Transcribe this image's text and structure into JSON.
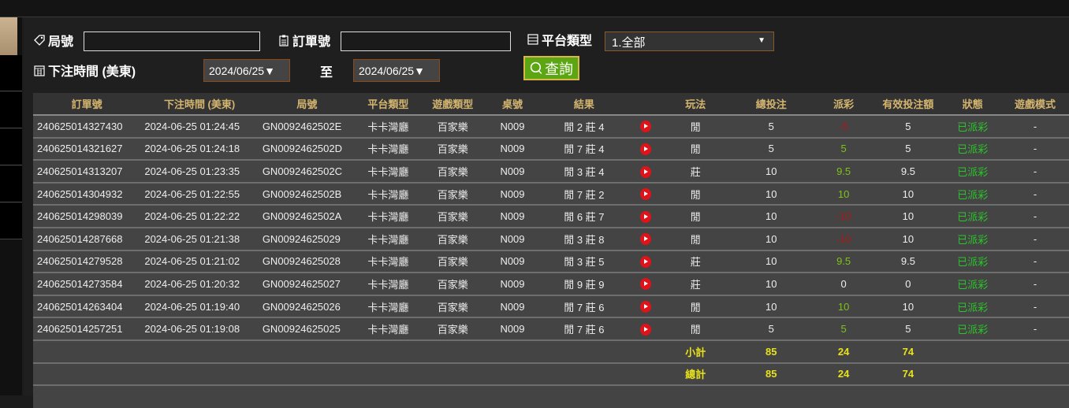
{
  "filters": {
    "round_label": "局號",
    "round_value": "",
    "order_label": "訂單號",
    "order_value": "",
    "platform_label": "平台類型",
    "platform_selected": "1.全部",
    "time_label": "下注時間 (美東)",
    "date_from": "2024/06/25▼",
    "to_label": "至",
    "date_to": "2024/06/25▼",
    "query_button": "查詢"
  },
  "table": {
    "headers": [
      "訂單號",
      "下注時間 (美東)",
      "局號",
      "平台類型",
      "遊戲類型",
      "桌號",
      "結果",
      "",
      "玩法",
      "總投注",
      "派彩",
      "有效投注額",
      "狀態",
      "遊戲模式"
    ],
    "rows": [
      [
        "240625014327430",
        "2024-06-25 01:24:45",
        "GN0092462502E",
        "卡卡灣廳",
        "百家樂",
        "N009",
        "閒 2 莊 4",
        "閒",
        "5",
        "-5",
        "5",
        "已派彩",
        "-"
      ],
      [
        "240625014321627",
        "2024-06-25 01:24:18",
        "GN0092462502D",
        "卡卡灣廳",
        "百家樂",
        "N009",
        "閒 7 莊 4",
        "閒",
        "5",
        "5",
        "5",
        "已派彩",
        "-"
      ],
      [
        "240625014313207",
        "2024-06-25 01:23:35",
        "GN0092462502C",
        "卡卡灣廳",
        "百家樂",
        "N009",
        "閒 3 莊 4",
        "莊",
        "10",
        "9.5",
        "9.5",
        "已派彩",
        "-"
      ],
      [
        "240625014304932",
        "2024-06-25 01:22:55",
        "GN0092462502B",
        "卡卡灣廳",
        "百家樂",
        "N009",
        "閒 7 莊 2",
        "閒",
        "10",
        "10",
        "10",
        "已派彩",
        "-"
      ],
      [
        "240625014298039",
        "2024-06-25 01:22:22",
        "GN0092462502A",
        "卡卡灣廳",
        "百家樂",
        "N009",
        "閒 6 莊 7",
        "閒",
        "10",
        "-10",
        "10",
        "已派彩",
        "-"
      ],
      [
        "240625014287668",
        "2024-06-25 01:21:38",
        "GN00924625029",
        "卡卡灣廳",
        "百家樂",
        "N009",
        "閒 3 莊 8",
        "閒",
        "10",
        "-10",
        "10",
        "已派彩",
        "-"
      ],
      [
        "240625014279528",
        "2024-06-25 01:21:02",
        "GN00924625028",
        "卡卡灣廳",
        "百家樂",
        "N009",
        "閒 3 莊 5",
        "莊",
        "10",
        "9.5",
        "9.5",
        "已派彩",
        "-"
      ],
      [
        "240625014273584",
        "2024-06-25 01:20:32",
        "GN00924625027",
        "卡卡灣廳",
        "百家樂",
        "N009",
        "閒 9 莊 9",
        "莊",
        "10",
        "0",
        "0",
        "已派彩",
        "-"
      ],
      [
        "240625014263404",
        "2024-06-25 01:19:40",
        "GN00924625026",
        "卡卡灣廳",
        "百家樂",
        "N009",
        "閒 7 莊 6",
        "閒",
        "10",
        "10",
        "10",
        "已派彩",
        "-"
      ],
      [
        "240625014257251",
        "2024-06-25 01:19:08",
        "GN00924625025",
        "卡卡灣廳",
        "百家樂",
        "N009",
        "閒 7 莊 6",
        "閒",
        "5",
        "5",
        "5",
        "已派彩",
        "-"
      ]
    ],
    "subtotal": {
      "label": "小計",
      "bet": "85",
      "payout": "24",
      "valid": "74"
    },
    "total": {
      "label": "總計",
      "bet": "85",
      "payout": "24",
      "valid": "74"
    }
  },
  "colors": {
    "header_text": "#d4b570",
    "positive": "#7ec21a",
    "negative": "#b01818",
    "status": "#2bc42b",
    "total": "#e8e21a",
    "button": "#5ca613"
  },
  "icons": {
    "round": "tag-icon",
    "order": "clipboard-icon",
    "platform": "list-icon",
    "time": "calendar-icon",
    "query": "search-icon",
    "replay": "play-icon"
  }
}
